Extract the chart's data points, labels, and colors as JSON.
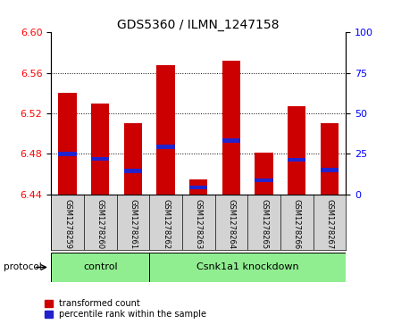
{
  "title": "GDS5360 / ILMN_1247158",
  "samples": [
    "GSM1278259",
    "GSM1278260",
    "GSM1278261",
    "GSM1278262",
    "GSM1278263",
    "GSM1278264",
    "GSM1278265",
    "GSM1278266",
    "GSM1278267"
  ],
  "bar_tops": [
    6.54,
    6.53,
    6.51,
    6.568,
    6.455,
    6.572,
    6.481,
    6.527,
    6.51
  ],
  "bar_bottoms": [
    6.44,
    6.44,
    6.44,
    6.44,
    6.44,
    6.44,
    6.44,
    6.44,
    6.44
  ],
  "blue_positions": [
    6.48,
    6.475,
    6.463,
    6.487,
    6.447,
    6.493,
    6.454,
    6.474,
    6.464
  ],
  "ylim_left": [
    6.44,
    6.6
  ],
  "ylim_right": [
    0,
    100
  ],
  "yticks_left": [
    6.44,
    6.48,
    6.52,
    6.56,
    6.6
  ],
  "yticks_right": [
    0,
    25,
    50,
    75,
    100
  ],
  "bar_color": "#cc0000",
  "blue_color": "#2222cc",
  "bar_width": 0.55,
  "blue_bar_height": 0.004,
  "control_count": 3,
  "knockdown_count": 6,
  "control_label": "control",
  "knockdown_label": "Csnk1a1 knockdown",
  "protocol_label": "protocol",
  "legend_red": "transformed count",
  "legend_blue": "percentile rank within the sample",
  "group_box_color": "#90ee90",
  "sample_area_color": "#d3d3d3",
  "title_fontsize": 10,
  "axis_fontsize": 8,
  "sample_fontsize": 6,
  "group_label_fontsize": 8,
  "legend_fontsize": 7
}
